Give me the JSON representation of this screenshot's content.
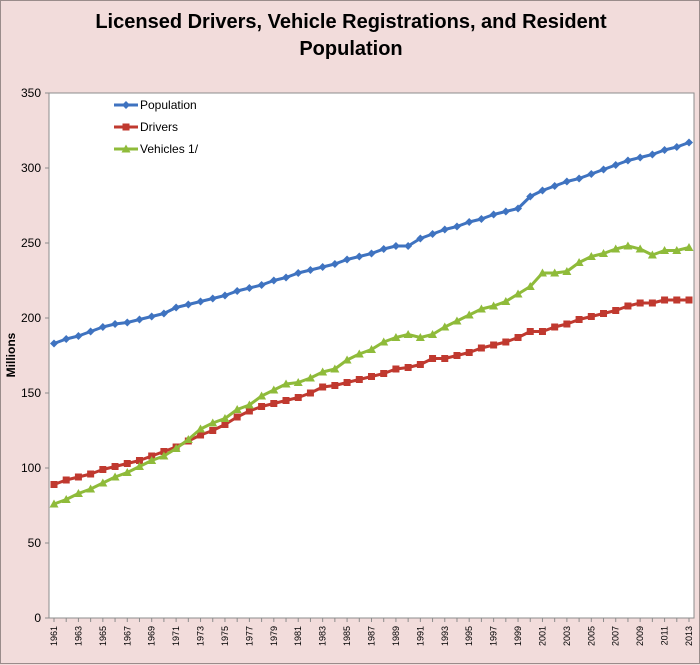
{
  "chart_data": {
    "type": "line",
    "title_lines": [
      "Licensed Drivers, Vehicle Registrations, and Resident",
      "Population"
    ],
    "xlabel": "",
    "ylabel": "Millions",
    "ylim": [
      0,
      350
    ],
    "yticks": [
      0,
      50,
      100,
      150,
      200,
      250,
      300,
      350
    ],
    "x": [
      1961,
      1962,
      1963,
      1964,
      1965,
      1966,
      1967,
      1968,
      1969,
      1970,
      1971,
      1972,
      1973,
      1974,
      1975,
      1976,
      1977,
      1978,
      1979,
      1980,
      1981,
      1982,
      1983,
      1984,
      1985,
      1986,
      1987,
      1988,
      1989,
      1990,
      1991,
      1992,
      1993,
      1994,
      1995,
      1996,
      1997,
      1998,
      1999,
      2000,
      2001,
      2002,
      2003,
      2004,
      2005,
      2006,
      2007,
      2008,
      2009,
      2010,
      2011,
      2012,
      2013
    ],
    "xticks_labeled": [
      1961,
      1963,
      1965,
      1967,
      1969,
      1971,
      1973,
      1975,
      1977,
      1979,
      1981,
      1983,
      1985,
      1987,
      1989,
      1991,
      1993,
      1995,
      1997,
      1999,
      2001,
      2003,
      2005,
      2007,
      2009,
      2011,
      2013
    ],
    "grid": "horizontal-none",
    "legend_position": "top-left",
    "series": [
      {
        "name": "Population",
        "color": "#3f73c0",
        "marker": "diamond",
        "values": [
          183,
          186,
          188,
          191,
          194,
          196,
          197,
          199,
          201,
          203,
          207,
          209,
          211,
          213,
          215,
          218,
          220,
          222,
          225,
          227,
          230,
          232,
          234,
          236,
          239,
          241,
          243,
          246,
          248,
          248,
          253,
          256,
          259,
          261,
          264,
          266,
          269,
          271,
          273,
          281,
          285,
          288,
          291,
          293,
          296,
          299,
          302,
          305,
          307,
          309,
          312,
          314,
          317
        ]
      },
      {
        "name": "Drivers",
        "color": "#c0392f",
        "marker": "square",
        "values": [
          89,
          92,
          94,
          96,
          99,
          101,
          103,
          105,
          108,
          111,
          114,
          118,
          122,
          125,
          129,
          134,
          138,
          141,
          143,
          145,
          147,
          150,
          154,
          155,
          157,
          159,
          161,
          163,
          166,
          167,
          169,
          173,
          173,
          175,
          177,
          180,
          182,
          184,
          187,
          191,
          191,
          194,
          196,
          199,
          201,
          203,
          205,
          208,
          210,
          210,
          212,
          212,
          212
        ]
      },
      {
        "name": "Vehicles 1/",
        "color": "#8fbb3a",
        "marker": "triangle",
        "values": [
          76,
          79,
          83,
          86,
          90,
          94,
          97,
          101,
          105,
          108,
          113,
          119,
          126,
          130,
          133,
          139,
          142,
          148,
          152,
          156,
          157,
          160,
          164,
          166,
          172,
          176,
          179,
          184,
          187,
          189,
          187,
          189,
          194,
          198,
          202,
          206,
          208,
          211,
          216,
          221,
          230,
          230,
          231,
          237,
          241,
          243,
          246,
          248,
          246,
          242,
          245,
          245,
          247
        ]
      }
    ]
  }
}
